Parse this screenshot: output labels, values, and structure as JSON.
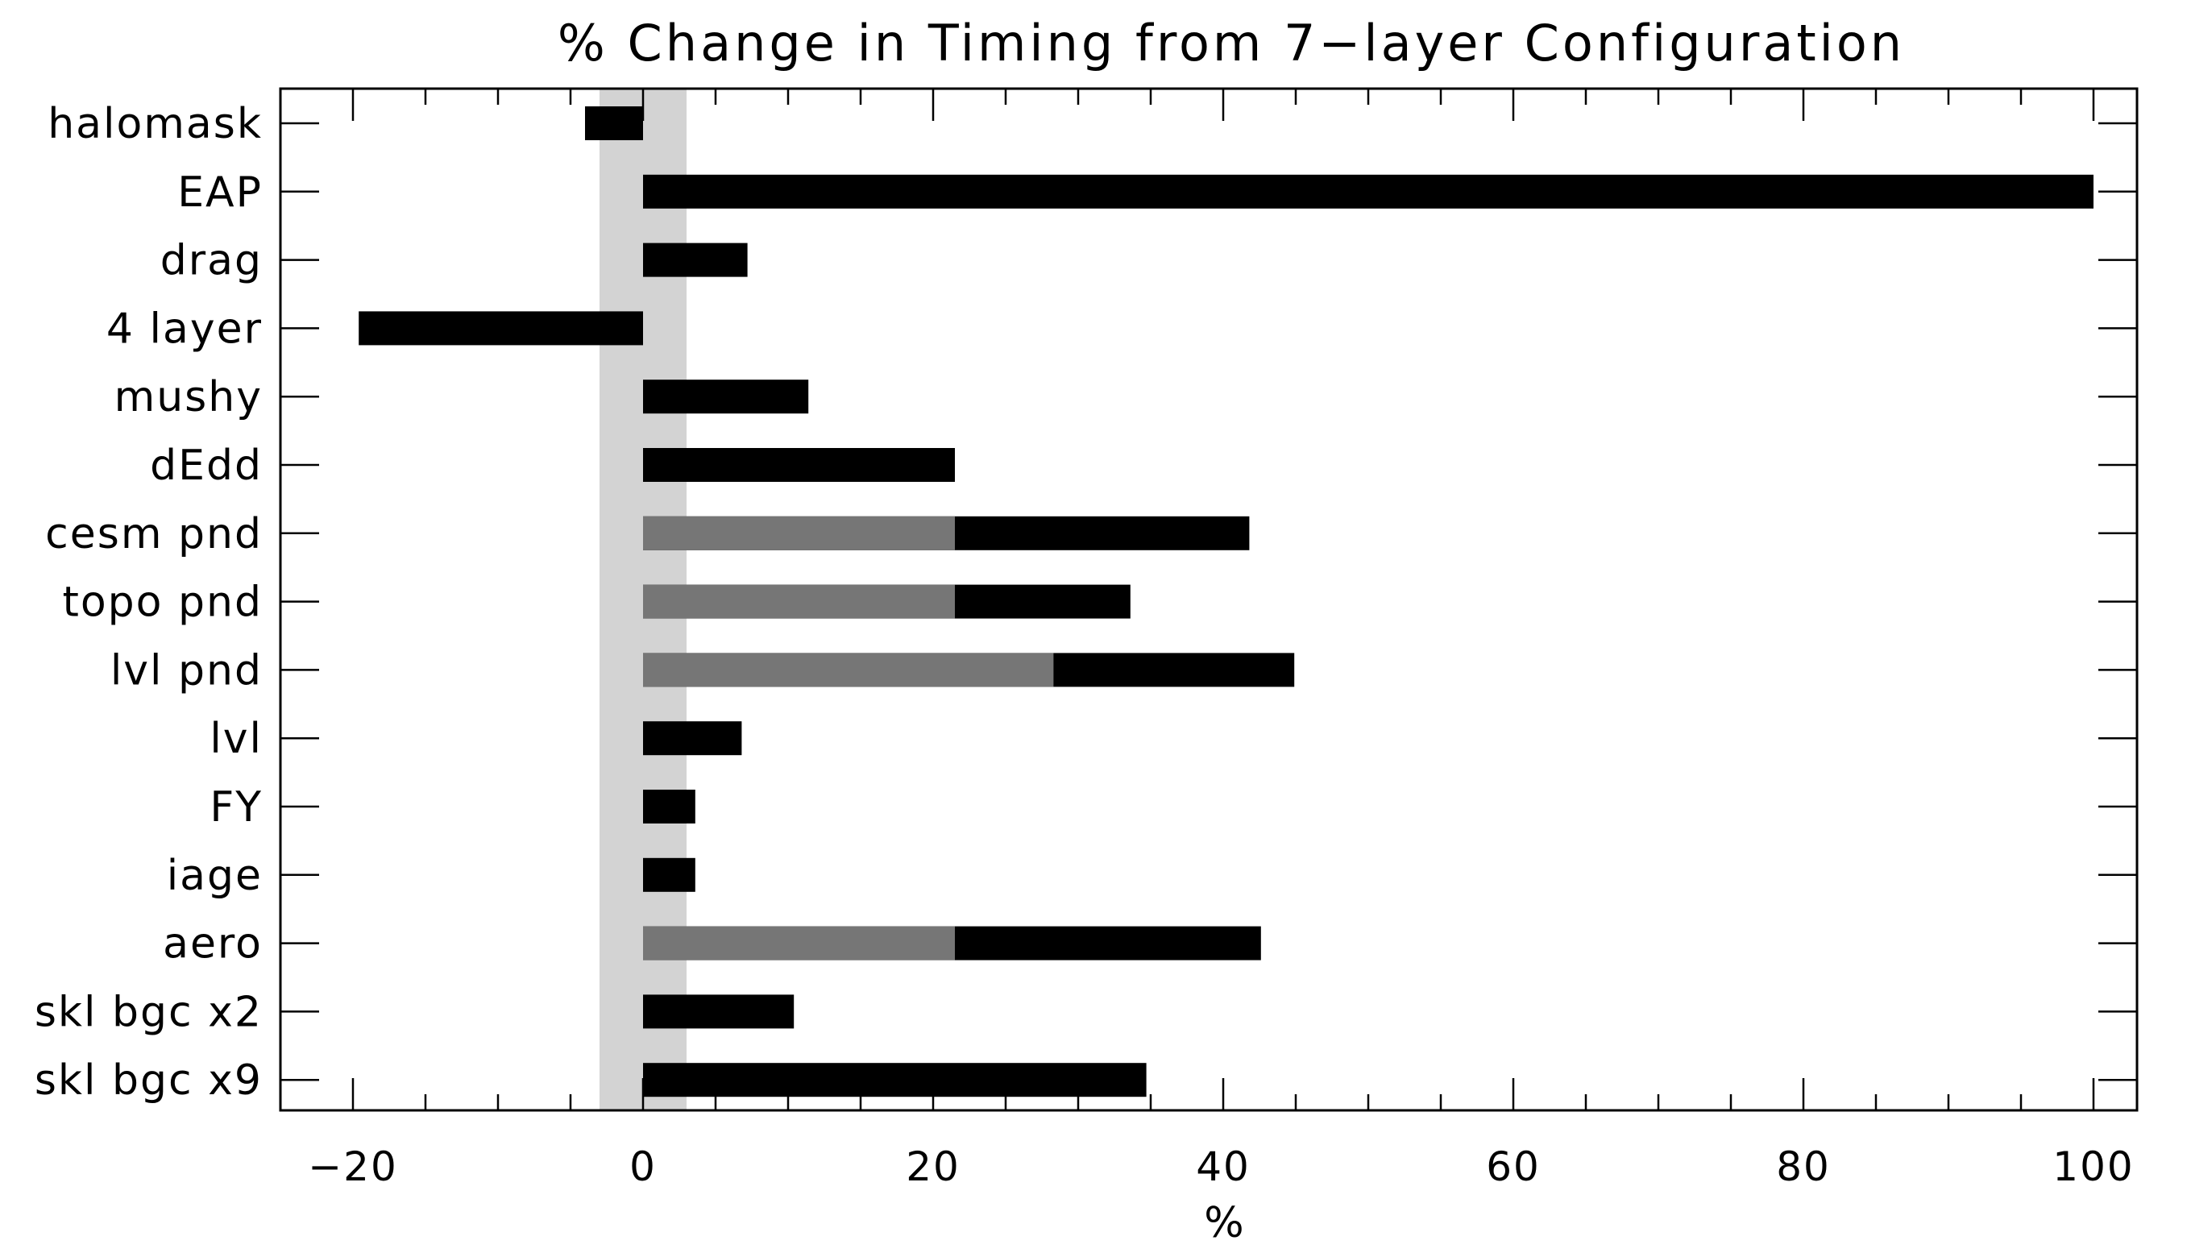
{
  "chart_data": {
    "type": "bar",
    "orientation": "horizontal",
    "title": "% Change in Timing from 7−layer Configuration",
    "xlabel": "%",
    "ylabel": "",
    "xlim": [
      -25,
      103
    ],
    "x_ticks": [
      "−20",
      "0",
      "20",
      "40",
      "60",
      "80",
      "100"
    ],
    "x_tick_values": [
      -20,
      0,
      20,
      40,
      60,
      80,
      100
    ],
    "minor_tick_step": 5,
    "reference_band": [
      -3,
      3
    ],
    "categories": [
      "halomask",
      "EAP",
      "drag",
      "4 layer",
      "mushy",
      "dEdd",
      "cesm pnd",
      "topo pnd",
      "lvl pnd",
      "lvl",
      "FY",
      "iage",
      "aero",
      "skl bgc x2",
      "skl bgc x9"
    ],
    "series": [
      {
        "values": [
          -4,
          100,
          7.2,
          -19.6,
          11.4,
          21.5,
          41.8,
          33.6,
          44.9,
          6.8,
          3.6,
          3.6,
          42.6,
          10.4,
          34.7
        ]
      },
      {
        "values": [
          null,
          null,
          null,
          null,
          null,
          null,
          21.5,
          21.5,
          28.3,
          null,
          null,
          null,
          21.5,
          null,
          null
        ]
      }
    ],
    "colors": {
      "bar": "#000000",
      "overlay_bar": "#767676",
      "band": "#d3d3d3",
      "axis": "#000000"
    },
    "grid": false,
    "legend": "none"
  }
}
